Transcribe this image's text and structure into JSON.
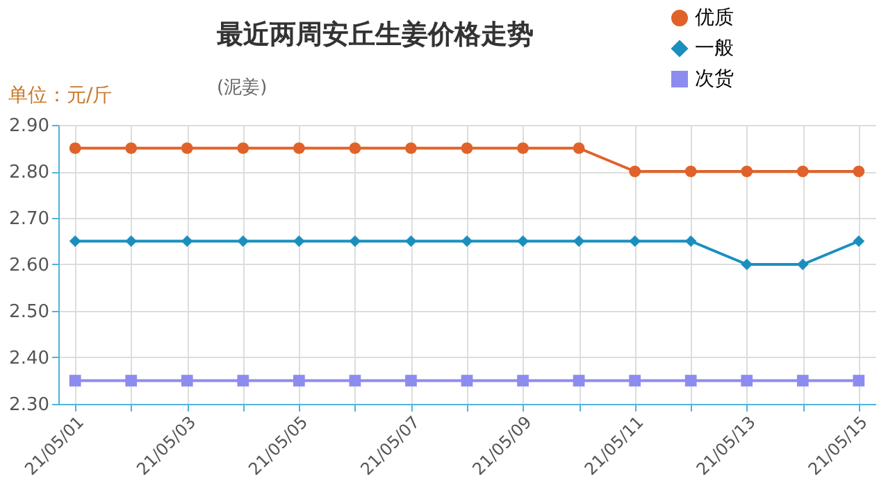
{
  "chart_data": {
    "type": "line",
    "title": "最近两周安丘生姜价格走势",
    "subtitle": "(泥姜)",
    "annotations": [
      "单位：元/斤"
    ],
    "categories": [
      "21/05/01",
      null,
      "21/05/03",
      null,
      "21/05/05",
      null,
      "21/05/07",
      null,
      "21/05/09",
      null,
      "21/05/11",
      null,
      "21/05/13",
      null,
      "21/05/15"
    ],
    "series": [
      {
        "name": "优质",
        "color": "#e0622a",
        "marker": "circle",
        "values": [
          2.85,
          2.85,
          2.85,
          2.85,
          2.85,
          2.85,
          2.85,
          2.85,
          2.85,
          2.85,
          2.8,
          2.8,
          2.8,
          2.8,
          2.8
        ]
      },
      {
        "name": "一般",
        "color": "#1a8fbf",
        "marker": "diamond",
        "values": [
          2.65,
          2.65,
          2.65,
          2.65,
          2.65,
          2.65,
          2.65,
          2.65,
          2.65,
          2.65,
          2.65,
          2.65,
          2.6,
          2.6,
          2.65
        ]
      },
      {
        "name": "次货",
        "color": "#8c8cf0",
        "marker": "square",
        "values": [
          2.35,
          2.35,
          2.35,
          2.35,
          2.35,
          2.35,
          2.35,
          2.35,
          2.35,
          2.35,
          2.35,
          2.35,
          2.35,
          2.35,
          2.35
        ]
      }
    ],
    "ylim": [
      2.3,
      2.9
    ],
    "yticks": [
      {
        "value": 2.3,
        "label": "2.30"
      },
      {
        "value": 2.4,
        "label": "2.40"
      },
      {
        "value": 2.5,
        "label": "2.50"
      },
      {
        "value": 2.6,
        "label": "2.60"
      },
      {
        "value": 2.7,
        "label": "2.70"
      },
      {
        "value": 2.8,
        "label": "2.80"
      },
      {
        "value": 2.9,
        "label": "2.90"
      }
    ],
    "grid": true,
    "legend": "top right",
    "line_style": "solid"
  }
}
